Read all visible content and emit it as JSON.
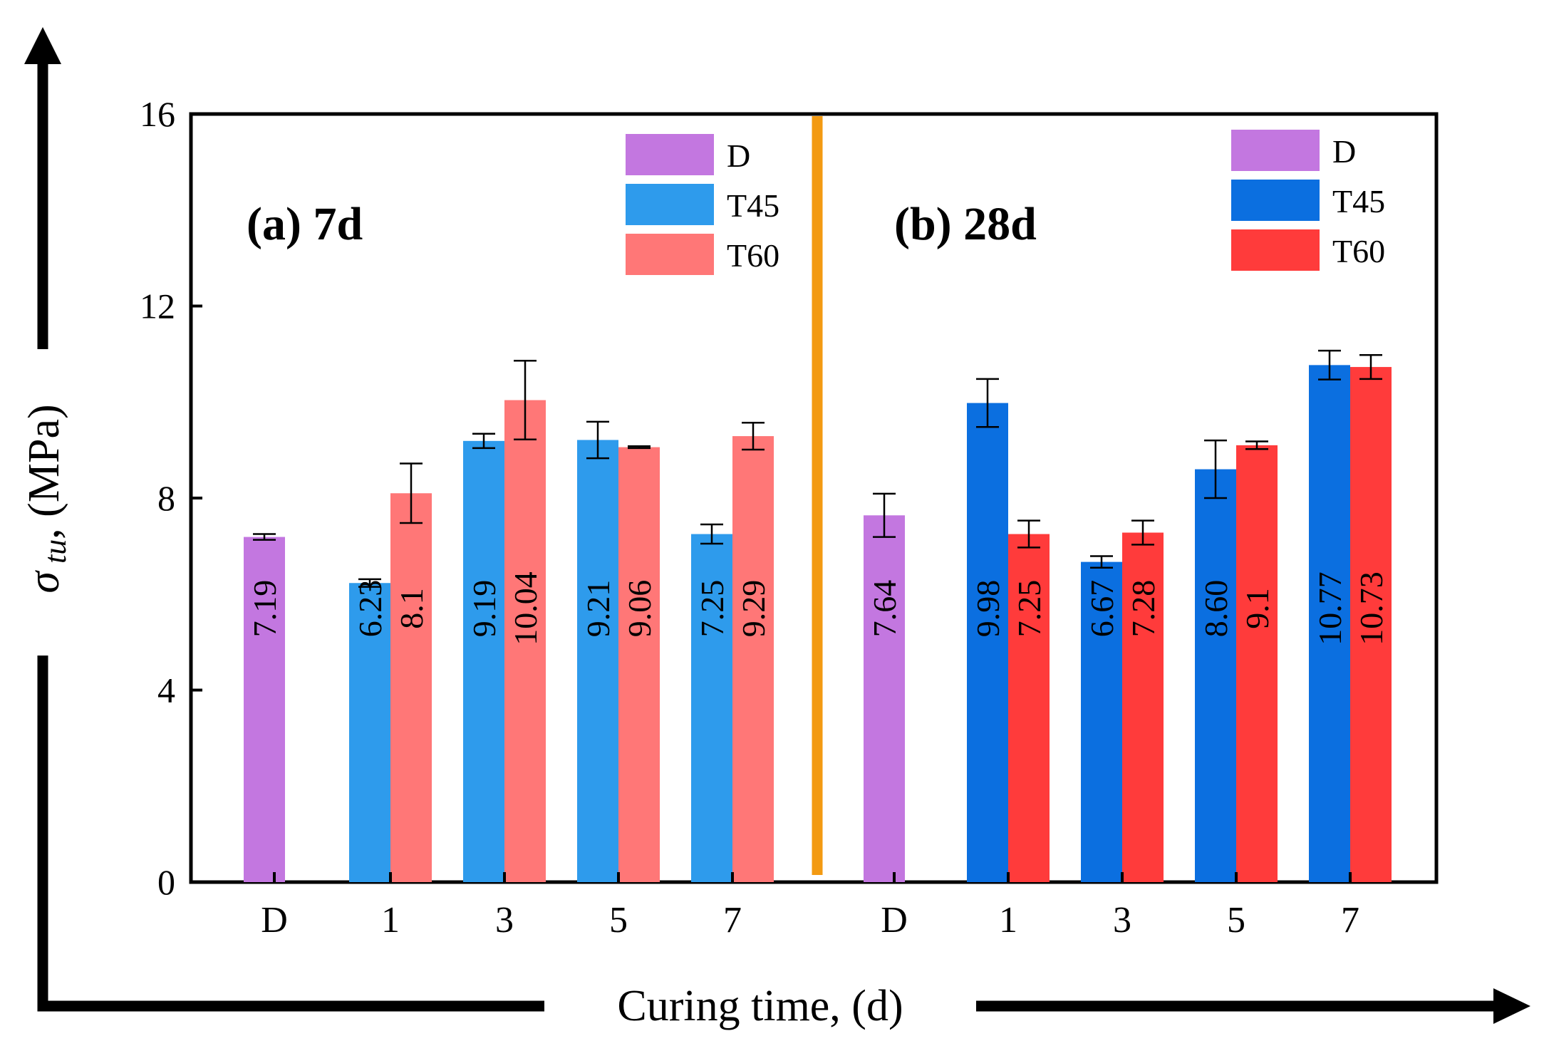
{
  "chart_data": {
    "type": "bar",
    "ylabel_symbol": "σ",
    "ylabel_subscript": "tu",
    "ylabel_rest": ", (MPa)",
    "xlabel": "Curing time, (d)",
    "ylim": [
      0,
      16
    ],
    "yticks": [
      "0",
      "4",
      "8",
      "12",
      "16"
    ],
    "panels": [
      {
        "label": "(a) 7d",
        "legend": [
          {
            "name": "D",
            "color": "#c377e0"
          },
          {
            "name": "T45",
            "color": "#2e9bec"
          },
          {
            "name": "T60",
            "color": "#ff7777"
          }
        ],
        "categories": [
          "D",
          "1",
          "3",
          "5",
          "7"
        ],
        "groups": [
          {
            "category": "D",
            "bars": [
              {
                "series": "D",
                "value": 7.19,
                "label": "7.19",
                "err": 0.06
              }
            ]
          },
          {
            "category": "1",
            "bars": [
              {
                "series": "T45",
                "value": 6.23,
                "label": "6.23",
                "err": 0.08
              },
              {
                "series": "T60",
                "value": 8.1,
                "label": "8.1",
                "err": 0.62
              }
            ]
          },
          {
            "category": "3",
            "bars": [
              {
                "series": "T45",
                "value": 9.19,
                "label": "9.19",
                "err": 0.15
              },
              {
                "series": "T60",
                "value": 10.04,
                "label": "10.04",
                "err": 0.82
              }
            ]
          },
          {
            "category": "5",
            "bars": [
              {
                "series": "T45",
                "value": 9.21,
                "label": "9.21",
                "err": 0.38
              },
              {
                "series": "T60",
                "value": 9.06,
                "label": "9.06",
                "err": 0.02
              }
            ]
          },
          {
            "category": "7",
            "bars": [
              {
                "series": "T45",
                "value": 7.25,
                "label": "7.25",
                "err": 0.2
              },
              {
                "series": "T60",
                "value": 9.29,
                "label": "9.29",
                "err": 0.28
              }
            ]
          }
        ]
      },
      {
        "label": "(b) 28d",
        "legend": [
          {
            "name": "D",
            "color": "#c377e0"
          },
          {
            "name": "T45",
            "color": "#0b6fe0"
          },
          {
            "name": "T60",
            "color": "#ff3b3b"
          }
        ],
        "categories": [
          "D",
          "1",
          "3",
          "5",
          "7"
        ],
        "groups": [
          {
            "category": "D",
            "bars": [
              {
                "series": "D",
                "value": 7.64,
                "label": "7.64",
                "err": 0.45
              }
            ]
          },
          {
            "category": "1",
            "bars": [
              {
                "series": "T45",
                "value": 9.98,
                "label": "9.98",
                "err": 0.5
              },
              {
                "series": "T60",
                "value": 7.25,
                "label": "7.25",
                "err": 0.28
              }
            ]
          },
          {
            "category": "3",
            "bars": [
              {
                "series": "T45",
                "value": 6.67,
                "label": "6.67",
                "err": 0.12
              },
              {
                "series": "T60",
                "value": 7.28,
                "label": "7.28",
                "err": 0.25
              }
            ]
          },
          {
            "category": "5",
            "bars": [
              {
                "series": "T45",
                "value": 8.6,
                "label": "8.60",
                "err": 0.6
              },
              {
                "series": "T60",
                "value": 9.1,
                "label": "9.1",
                "err": 0.08
              }
            ]
          },
          {
            "category": "7",
            "bars": [
              {
                "series": "T45",
                "value": 10.77,
                "label": "10.77",
                "err": 0.3
              },
              {
                "series": "T60",
                "value": 10.73,
                "label": "10.73",
                "err": 0.25
              }
            ]
          }
        ]
      }
    ],
    "divider_color": "#f39a12",
    "error_bars": true,
    "grid": false
  }
}
